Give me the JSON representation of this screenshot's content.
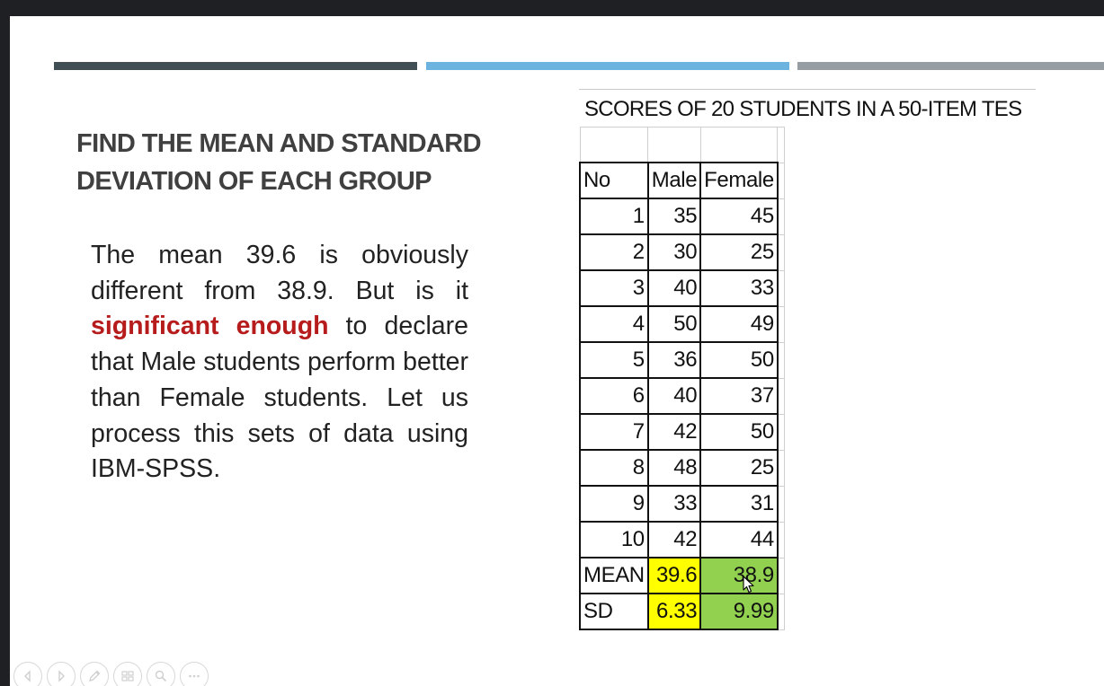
{
  "slide": {
    "heading": "FIND THE MEAN AND STANDARD DEVIATION OF EACH GROUP",
    "paragraph": {
      "before": "The mean 39.6 is obviously different from 38.9. But is it ",
      "highlight": "significant enough",
      "after": " to declare that Male students perform better than Female students. Let us process this sets of data using IBM-SPSS."
    },
    "accent_colors": [
      "#414f55",
      "#6cb4df",
      "#969ea3"
    ],
    "highlight_color": "#b71c1c"
  },
  "sheet": {
    "title": "SCORES OF 20 STUDENTS IN A 50-ITEM TES",
    "headers": [
      "No",
      "Male",
      "Female"
    ],
    "rows": [
      [
        "1",
        "35",
        "45"
      ],
      [
        "2",
        "30",
        "25"
      ],
      [
        "3",
        "40",
        "33"
      ],
      [
        "4",
        "50",
        "49"
      ],
      [
        "5",
        "36",
        "50"
      ],
      [
        "6",
        "40",
        "37"
      ],
      [
        "7",
        "42",
        "50"
      ],
      [
        "8",
        "48",
        "25"
      ],
      [
        "9",
        "33",
        "31"
      ],
      [
        "10",
        "42",
        "44"
      ]
    ],
    "summary": [
      [
        "MEAN",
        "39.6",
        "38.9"
      ],
      [
        "SD",
        "6.33",
        "9.99"
      ]
    ],
    "male_fill": "#ffff00",
    "female_fill": "#92d050"
  },
  "controls": {
    "icons": [
      "previous-icon",
      "next-icon",
      "pen-icon",
      "slides-icon",
      "zoom-icon",
      "more-icon"
    ]
  }
}
